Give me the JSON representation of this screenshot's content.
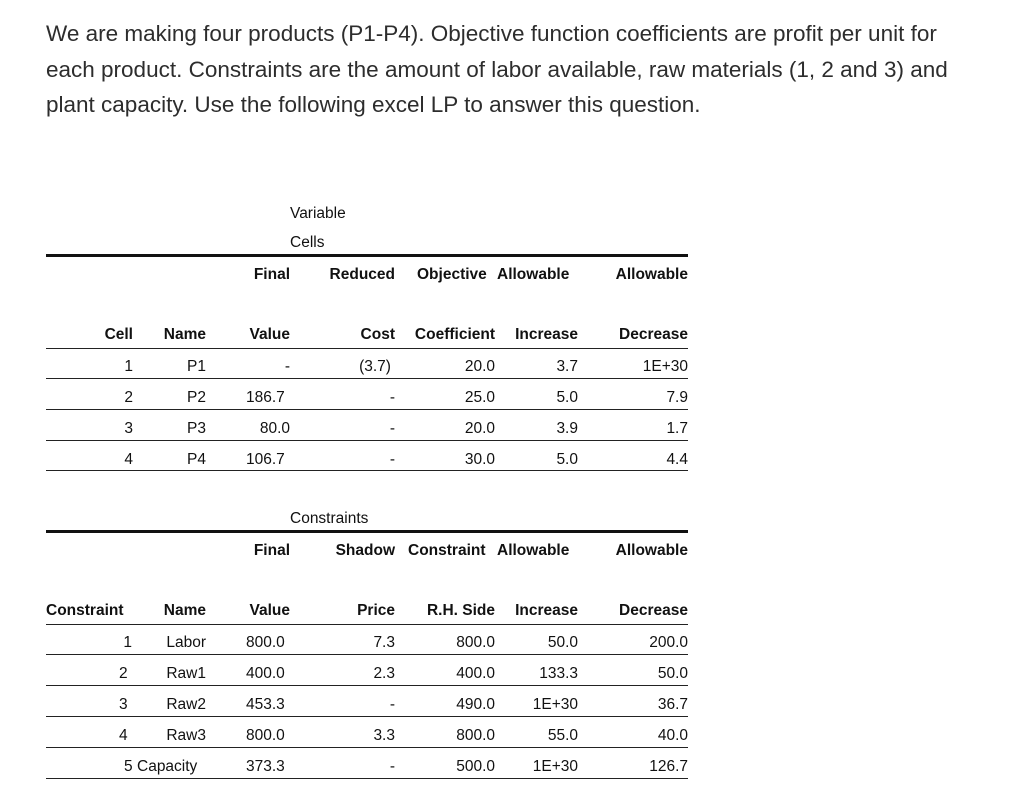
{
  "intro_text": "We are making four products (P1-P4). Objective function coefficients are profit per unit for each product. Constraints are the amount of labor available, raw materials (1, 2 and 3) and plant capacity. Use the following excel LP to answer this question.",
  "variable_cells": {
    "caption_line1": "Variable",
    "caption_line2": "Cells",
    "header_row1": [
      "",
      "",
      "Final",
      "Reduced",
      "Objective",
      "Allowable",
      "Allowable"
    ],
    "header_row2": [
      "Cell",
      "Name",
      "Value",
      "Cost",
      "Coefficient",
      "Increase",
      "Decrease"
    ],
    "rows": [
      [
        "1",
        "P1",
        "-",
        "(3.7)",
        "20.0",
        "3.7",
        "1E+30"
      ],
      [
        "2",
        "P2",
        "186.7",
        "-",
        "25.0",
        "5.0",
        "7.9"
      ],
      [
        "3",
        "P3",
        "80.0",
        "-",
        "20.0",
        "3.9",
        "1.7"
      ],
      [
        "4",
        "P4",
        "106.7",
        "-",
        "30.0",
        "5.0",
        "4.4"
      ]
    ]
  },
  "constraints": {
    "caption": "Constraints",
    "header_row1": [
      "",
      "",
      "Final",
      "Shadow",
      "Constraint",
      "Allowable",
      "Allowable"
    ],
    "header_row2": [
      "Constraint",
      "Name",
      "Value",
      "Price",
      "R.H. Side",
      "Increase",
      "Decrease"
    ],
    "rows": [
      [
        "1",
        "Labor",
        "800.0",
        "7.3",
        "800.0",
        "50.0",
        "200.0"
      ],
      [
        "2",
        "Raw1",
        "400.0",
        "2.3",
        "400.0",
        "133.3",
        "50.0"
      ],
      [
        "3",
        "Raw2",
        "453.3",
        "-",
        "490.0",
        "1E+30",
        "36.7"
      ],
      [
        "4",
        "Raw3",
        "800.0",
        "3.3",
        "800.0",
        "55.0",
        "40.0"
      ],
      [
        "5",
        "Capacity",
        "373.3",
        "-",
        "500.0",
        "1E+30",
        "126.7"
      ]
    ]
  }
}
